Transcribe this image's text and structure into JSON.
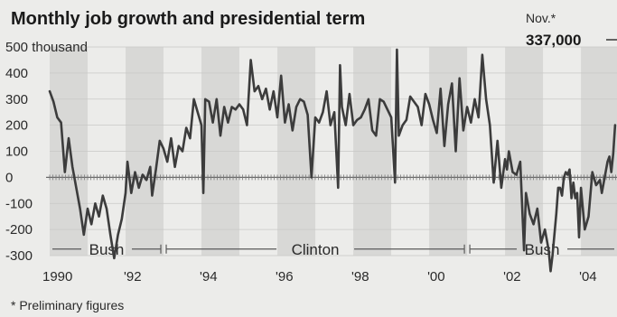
{
  "chart_data": {
    "type": "line",
    "title": "Monthly job growth and presidential term",
    "y_unit_label": "500 thousand",
    "ylim": [
      -300,
      500
    ],
    "y_ticks": [
      {
        "value": 500,
        "label": "500 thousand"
      },
      {
        "value": 400,
        "label": "400"
      },
      {
        "value": 300,
        "label": "300"
      },
      {
        "value": 200,
        "label": "200"
      },
      {
        "value": 100,
        "label": "100"
      },
      {
        "value": 0,
        "label": "0"
      },
      {
        "value": -100,
        "label": "-100"
      },
      {
        "value": -200,
        "label": "-200"
      },
      {
        "value": -300,
        "label": "-300"
      }
    ],
    "xlim": [
      1990.0,
      2004.95
    ],
    "x_ticks": [
      {
        "value": 1990.0,
        "label": "1990"
      },
      {
        "value": 1992.0,
        "label": "'92"
      },
      {
        "value": 1994.0,
        "label": "'94"
      },
      {
        "value": 1996.0,
        "label": "'96"
      },
      {
        "value": 1998.0,
        "label": "'98"
      },
      {
        "value": 2000.0,
        "label": "'00"
      },
      {
        "value": 2002.0,
        "label": "'02"
      },
      {
        "value": 2004.0,
        "label": "'04"
      }
    ],
    "shaded_years": [
      1990,
      1992,
      1994,
      1996,
      1998,
      2000,
      2002,
      2004
    ],
    "terms": [
      {
        "name": "Bush",
        "start": 1990.0,
        "end": 1993.0
      },
      {
        "name": "Clinton",
        "start": 1993.0,
        "end": 2001.0
      },
      {
        "name": "Bush",
        "start": 2001.0,
        "end": 2004.95
      }
    ],
    "series": [
      {
        "points": [
          [
            1990.0,
            330
          ],
          [
            1990.1,
            290
          ],
          [
            1990.2,
            230
          ],
          [
            1990.3,
            210
          ],
          [
            1990.4,
            20
          ],
          [
            1990.5,
            150
          ],
          [
            1990.6,
            40
          ],
          [
            1990.7,
            -40
          ],
          [
            1990.8,
            -120
          ],
          [
            1990.9,
            -220
          ],
          [
            1991.0,
            -120
          ],
          [
            1991.1,
            -180
          ],
          [
            1991.2,
            -100
          ],
          [
            1991.3,
            -150
          ],
          [
            1991.4,
            -70
          ],
          [
            1991.5,
            -120
          ],
          [
            1991.6,
            -220
          ],
          [
            1991.7,
            -310
          ],
          [
            1991.8,
            -220
          ],
          [
            1991.9,
            -160
          ],
          [
            1992.0,
            -60
          ],
          [
            1992.05,
            60
          ],
          [
            1992.15,
            -60
          ],
          [
            1992.25,
            20
          ],
          [
            1992.35,
            -40
          ],
          [
            1992.45,
            10
          ],
          [
            1992.55,
            -10
          ],
          [
            1992.65,
            40
          ],
          [
            1992.7,
            -70
          ],
          [
            1992.8,
            30
          ],
          [
            1992.9,
            140
          ],
          [
            1993.0,
            110
          ],
          [
            1993.1,
            60
          ],
          [
            1993.2,
            150
          ],
          [
            1993.3,
            40
          ],
          [
            1993.4,
            120
          ],
          [
            1993.5,
            100
          ],
          [
            1993.6,
            190
          ],
          [
            1993.7,
            150
          ],
          [
            1993.8,
            300
          ],
          [
            1993.9,
            250
          ],
          [
            1994.0,
            200
          ],
          [
            1994.05,
            -60
          ],
          [
            1994.1,
            300
          ],
          [
            1994.2,
            290
          ],
          [
            1994.3,
            210
          ],
          [
            1994.4,
            300
          ],
          [
            1994.5,
            160
          ],
          [
            1994.6,
            270
          ],
          [
            1994.7,
            210
          ],
          [
            1994.8,
            270
          ],
          [
            1994.9,
            260
          ],
          [
            1995.0,
            280
          ],
          [
            1995.1,
            260
          ],
          [
            1995.2,
            200
          ],
          [
            1995.3,
            450
          ],
          [
            1995.4,
            330
          ],
          [
            1995.5,
            350
          ],
          [
            1995.6,
            300
          ],
          [
            1995.7,
            340
          ],
          [
            1995.8,
            260
          ],
          [
            1995.9,
            330
          ],
          [
            1996.0,
            230
          ],
          [
            1996.1,
            390
          ],
          [
            1996.2,
            210
          ],
          [
            1996.3,
            280
          ],
          [
            1996.4,
            180
          ],
          [
            1996.5,
            270
          ],
          [
            1996.6,
            300
          ],
          [
            1996.7,
            290
          ],
          [
            1996.8,
            240
          ],
          [
            1996.9,
            0
          ],
          [
            1997.0,
            230
          ],
          [
            1997.1,
            210
          ],
          [
            1997.2,
            250
          ],
          [
            1997.3,
            330
          ],
          [
            1997.4,
            200
          ],
          [
            1997.5,
            250
          ],
          [
            1997.6,
            -40
          ],
          [
            1997.65,
            430
          ],
          [
            1997.7,
            270
          ],
          [
            1997.8,
            200
          ],
          [
            1997.9,
            320
          ],
          [
            1998.0,
            200
          ],
          [
            1998.1,
            220
          ],
          [
            1998.2,
            230
          ],
          [
            1998.3,
            260
          ],
          [
            1998.4,
            300
          ],
          [
            1998.5,
            180
          ],
          [
            1998.6,
            160
          ],
          [
            1998.7,
            300
          ],
          [
            1998.8,
            290
          ],
          [
            1998.9,
            260
          ],
          [
            1999.0,
            230
          ],
          [
            1999.1,
            -20
          ],
          [
            1999.15,
            490
          ],
          [
            1999.2,
            160
          ],
          [
            1999.3,
            200
          ],
          [
            1999.4,
            220
          ],
          [
            1999.5,
            310
          ],
          [
            1999.6,
            290
          ],
          [
            1999.7,
            270
          ],
          [
            1999.8,
            200
          ],
          [
            1999.9,
            320
          ],
          [
            2000.0,
            280
          ],
          [
            2000.1,
            220
          ],
          [
            2000.2,
            170
          ],
          [
            2000.3,
            340
          ],
          [
            2000.4,
            120
          ],
          [
            2000.5,
            280
          ],
          [
            2000.6,
            360
          ],
          [
            2000.7,
            100
          ],
          [
            2000.8,
            380
          ],
          [
            2000.9,
            180
          ],
          [
            2001.0,
            270
          ],
          [
            2001.1,
            210
          ],
          [
            2001.2,
            300
          ],
          [
            2001.3,
            230
          ],
          [
            2001.4,
            470
          ],
          [
            2001.5,
            300
          ],
          [
            2001.6,
            200
          ],
          [
            2001.7,
            -20
          ],
          [
            2001.8,
            140
          ],
          [
            2001.9,
            -40
          ],
          [
            2002.0,
            70
          ],
          [
            2002.05,
            30
          ],
          [
            2002.1,
            100
          ],
          [
            2002.2,
            20
          ],
          [
            2002.3,
            10
          ],
          [
            2002.4,
            60
          ],
          [
            2002.5,
            -280
          ],
          [
            2002.55,
            -60
          ],
          [
            2002.65,
            -140
          ],
          [
            2002.75,
            -180
          ],
          [
            2002.85,
            -120
          ],
          [
            2002.95,
            -250
          ],
          [
            2003.05,
            -200
          ],
          [
            2003.15,
            -280
          ],
          [
            2003.2,
            -360
          ],
          [
            2003.25,
            -300
          ],
          [
            2003.3,
            -220
          ],
          [
            2003.35,
            -140
          ],
          [
            2003.4,
            -40
          ],
          [
            2003.45,
            -40
          ],
          [
            2003.5,
            -70
          ],
          [
            2003.55,
            0
          ],
          [
            2003.6,
            20
          ],
          [
            2003.65,
            10
          ],
          [
            2003.7,
            30
          ],
          [
            2003.75,
            -80
          ],
          [
            2003.8,
            -20
          ],
          [
            2003.85,
            -80
          ],
          [
            2003.9,
            -60
          ],
          [
            2003.95,
            -230
          ],
          [
            2004.0,
            -40
          ],
          [
            2004.1,
            -200
          ],
          [
            2004.2,
            -150
          ],
          [
            2004.3,
            20
          ],
          [
            2004.4,
            -30
          ],
          [
            2004.5,
            -10
          ],
          [
            2004.55,
            -60
          ],
          [
            2004.6,
            -20
          ],
          [
            2004.65,
            20
          ],
          [
            2004.7,
            60
          ],
          [
            2004.75,
            80
          ],
          [
            2004.8,
            20
          ],
          [
            2004.85,
            90
          ],
          [
            2004.9,
            200
          ]
        ]
      }
    ],
    "annotation": {
      "label": "Nov.*",
      "value_label": "337,000"
    },
    "footnote": "* Preliminary figures"
  }
}
